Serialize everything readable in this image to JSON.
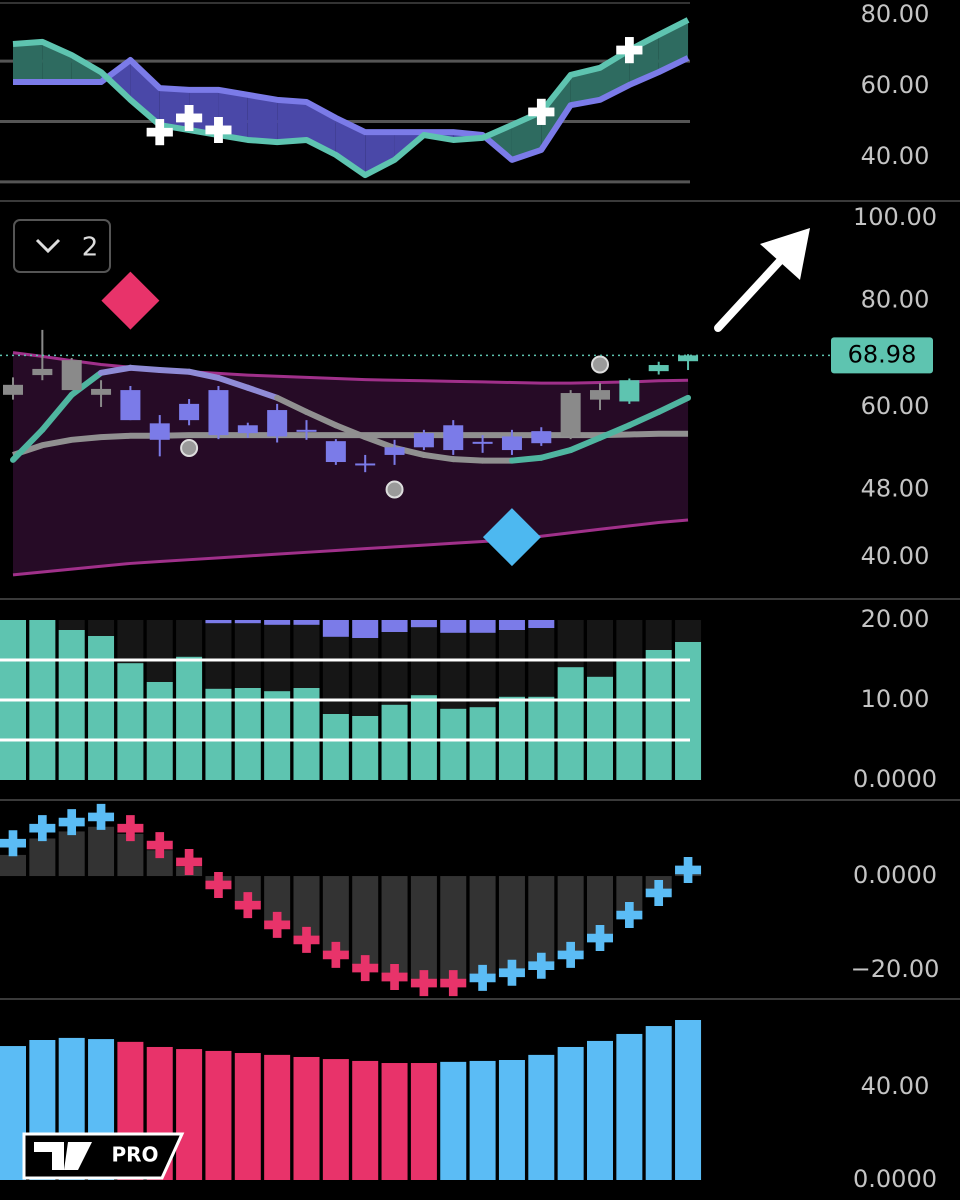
{
  "pane_toggle": "2",
  "logo_text": "PRO",
  "chart_data": [
    {
      "type": "line",
      "ylim": [
        27.9,
        84.2
      ],
      "yticks": [
        {
          "value": 80,
          "label": "80.00"
        },
        {
          "value": 60,
          "label": "60.00"
        },
        {
          "value": 40,
          "label": "40.00"
        }
      ],
      "hlines": [
        67,
        50,
        33
      ],
      "hline_color": "#555555",
      "fill_between": true,
      "fill_colors": [
        "#2e6b60",
        "#4a48a8"
      ],
      "series": [
        {
          "color": "#5ec4b0",
          "values": [
            71.8,
            72.4,
            68.7,
            63.9,
            56.1,
            49.0,
            47.6,
            46.2,
            44.8,
            44.2,
            44.8,
            40.6,
            34.9,
            39.2,
            46.2,
            44.8,
            45.4,
            49.0,
            52.7,
            63.1,
            65.1,
            70.1,
            74.4,
            78.6
          ]
        },
        {
          "color": "#7b7be8",
          "values": [
            61.1,
            61.1,
            61.1,
            61.1,
            67.3,
            59.4,
            58.9,
            58.9,
            57.5,
            56.1,
            55.5,
            51.0,
            47.0,
            47.0,
            47.0,
            47.0,
            46.2,
            39.2,
            42.0,
            54.6,
            56.1,
            60.3,
            63.9,
            67.9
          ]
        },
        {
          "color": "#ffffff",
          "marker": "cross",
          "values": [
            null,
            null,
            null,
            null,
            null,
            47.0,
            51.0,
            47.6,
            null,
            null,
            null,
            null,
            null,
            null,
            null,
            null,
            null,
            null,
            52.7,
            null,
            null,
            70.1,
            null,
            null
          ]
        }
      ]
    },
    {
      "type": "candlestick",
      "log_scale": true,
      "ylim": [
        35.6,
        105
      ],
      "yticks": [
        {
          "value": 100,
          "label": "100.00"
        },
        {
          "value": 80,
          "label": "80.00"
        },
        {
          "value": 60,
          "label": "60.00"
        },
        {
          "value": 48,
          "label": "48.00"
        },
        {
          "value": 40,
          "label": "40.00"
        }
      ],
      "open": [
        62.0,
        65.4,
        62.8,
        63.0,
        62.8,
        57.4,
        60.5,
        62.8,
        57.1,
        59.5,
        56.4,
        54.7,
        51.5,
        53.8,
        55.9,
        57.1,
        54.6,
        55.4,
        56.2,
        55.4,
        61.2,
        60.9,
        66.1,
        67.9
      ],
      "high": [
        65.0,
        73.9,
        68.5,
        64.5,
        63.5,
        58.7,
        61.3,
        63.5,
        57.5,
        60.5,
        57.9,
        55.0,
        52.7,
        54.9,
        56.4,
        57.9,
        55.6,
        56.4,
        56.8,
        62.8,
        64.0,
        64.8,
        67.8,
        69.2
      ],
      "low": [
        61.2,
        64.5,
        62.8,
        60.0,
        57.9,
        52.5,
        57.1,
        55.0,
        55.2,
        54.5,
        54.9,
        51.3,
        50.3,
        51.3,
        53.4,
        52.7,
        53.0,
        52.7,
        54.0,
        55.0,
        59.5,
        60.5,
        65.5,
        66.3
      ],
      "close": [
        63.7,
        66.5,
        68.1,
        62.0,
        57.9,
        54.9,
        57.9,
        55.6,
        55.9,
        55.4,
        56.2,
        51.7,
        51.3,
        52.7,
        53.8,
        53.4,
        54.4,
        53.4,
        54.4,
        62.3,
        62.8,
        64.5,
        67.2,
        68.98
      ],
      "colors": [
        "#8a8a8a",
        "#8a8a8a",
        "#8a8a8a",
        "#8a8a8a",
        "#7b7be8",
        "#7b7be8",
        "#7b7be8",
        "#7b7be8",
        "#7b7be8",
        "#7b7be8",
        "#7b7be8",
        "#7b7be8",
        "#7b7be8",
        "#7b7be8",
        "#7b7be8",
        "#7b7be8",
        "#7b7be8",
        "#7b7be8",
        "#7b7be8",
        "#8a8a8a",
        "#8a8a8a",
        "#5ec4b0",
        "#5ec4b0",
        "#5ec4b0"
      ],
      "band": {
        "fill": "#2a0c2a",
        "upper": [
          69.5,
          68.8,
          68.0,
          67.3,
          66.8,
          66.3,
          66.0,
          65.7,
          65.4,
          65.2,
          65.0,
          64.8,
          64.6,
          64.5,
          64.4,
          64.3,
          64.2,
          64.1,
          64.0,
          64.0,
          64.1,
          64.2,
          64.4,
          64.5
        ],
        "lower": [
          38.1,
          38.4,
          38.7,
          39.0,
          39.3,
          39.5,
          39.7,
          39.9,
          40.1,
          40.3,
          40.5,
          40.7,
          40.9,
          41.1,
          41.3,
          41.5,
          41.7,
          41.9,
          42.3,
          42.7,
          43.1,
          43.5,
          43.9,
          44.2
        ],
        "color": "#a0308a"
      },
      "series": [
        {
          "color": "#909090",
          "values": [
            52.7,
            54.1,
            54.9,
            55.3,
            55.5,
            55.5,
            55.6,
            55.6,
            55.6,
            55.6,
            55.6,
            55.6,
            55.6,
            55.6,
            55.6,
            55.6,
            55.6,
            55.6,
            55.6,
            55.6,
            55.6,
            55.7,
            55.8,
            55.8
          ]
        },
        {
          "colors": [
            "#4fb5a0",
            "#4fb5a0",
            "#4fb5a0",
            "#8f8bd6",
            "#8f8bd6",
            "#8f8bd6",
            "#8f8bd6",
            "#8f8bd6",
            "#8f8bd6",
            "#909090",
            "#909090",
            "#909090",
            "#909090",
            "#909090",
            "#909090",
            "#909090",
            "#909090",
            "#4fb5a0",
            "#4fb5a0",
            "#4fb5a0",
            "#4fb5a0",
            "#4fb5a0",
            "#4fb5a0",
            "#4fb5a0"
          ],
          "values": [
            52.0,
            56.4,
            62.0,
            65.8,
            66.7,
            66.3,
            66.0,
            64.9,
            63.2,
            61.5,
            59.2,
            57.1,
            55.3,
            53.7,
            52.7,
            52.1,
            51.9,
            51.9,
            52.3,
            53.4,
            55.2,
            57.1,
            59.2,
            61.5
          ]
        },
        {
          "color": "#9a9a9a",
          "marker": "circle",
          "values": [
            null,
            null,
            null,
            null,
            null,
            null,
            53.7,
            null,
            null,
            null,
            null,
            null,
            null,
            48.0,
            null,
            null,
            null,
            null,
            null,
            null,
            67.3,
            null,
            null,
            null
          ]
        },
        {
          "color": "#e8336a",
          "marker": "diamond",
          "values": [
            null,
            null,
            null,
            null,
            80.0,
            null,
            null,
            null,
            null,
            null,
            null,
            null,
            null,
            null,
            null,
            null,
            null,
            null,
            null,
            null,
            null,
            null,
            null,
            null
          ]
        },
        {
          "color": "#4db8f0",
          "marker": "diamond",
          "values": [
            null,
            null,
            null,
            null,
            null,
            null,
            null,
            null,
            null,
            null,
            null,
            null,
            null,
            null,
            null,
            null,
            null,
            42.2,
            null,
            null,
            null,
            null,
            null,
            null
          ]
        }
      ],
      "last_price": {
        "value": 68.98,
        "color": "#5ec4b0"
      }
    },
    {
      "type": "bar",
      "ylim": [
        -2.5,
        22.5
      ],
      "yticks": [
        {
          "value": 20,
          "label": "20.00"
        },
        {
          "value": 10,
          "label": "10.00"
        },
        {
          "value": 0,
          "label": "0.0000"
        }
      ],
      "hlines": [
        15,
        10,
        5
      ],
      "hline_color": "#ffffff",
      "series": [
        {
          "color": "#5ec4b0",
          "base": 0,
          "values": [
            20,
            20,
            18.75,
            18,
            14.6,
            12.25,
            15.4,
            11.4,
            11.5,
            11.1,
            11.5,
            8.25,
            8,
            9.4,
            10.6,
            8.9,
            9.1,
            10.4,
            10.4,
            14.1,
            12.9,
            15,
            16.25,
            17.25
          ]
        },
        {
          "color": "#7b7be8",
          "base": 20,
          "direction": "down",
          "values": [
            null,
            null,
            null,
            null,
            null,
            null,
            null,
            0.4,
            0.4,
            0.6,
            0.6,
            2.1,
            2.25,
            1.5,
            0.9,
            1.6,
            1.6,
            1.25,
            1.0,
            null,
            null,
            null,
            null,
            null
          ]
        }
      ]
    },
    {
      "type": "bar",
      "ylim": [
        -26.4,
        16.2
      ],
      "yticks": [
        {
          "value": 0,
          "label": "0.0000"
        },
        {
          "value": -20,
          "label": "−20.00"
        }
      ],
      "series": [
        {
          "color": "#333333",
          "base": 0,
          "values": [
            4.5,
            8.0,
            9.5,
            10.5,
            9.0,
            5.5,
            2.0,
            -1.0,
            -5.5,
            -9.5,
            -13.0,
            -16.0,
            -19.0,
            -21.0,
            -22.0,
            -22.0,
            -21.0,
            -20.0,
            -18.5,
            -16.0,
            -12.5,
            -7.5,
            -3.0,
            0.5
          ]
        },
        {
          "marker": "cross",
          "colors": [
            "#5bbcf5",
            "#5bbcf5",
            "#5bbcf5",
            "#5bbcf5",
            "#e8336a",
            "#e8336a",
            "#e8336a",
            "#e8336a",
            "#e8336a",
            "#e8336a",
            "#e8336a",
            "#e8336a",
            "#e8336a",
            "#e8336a",
            "#e8336a",
            "#e8336a",
            "#5bbcf5",
            "#5bbcf5",
            "#5bbcf5",
            "#5bbcf5",
            "#5bbcf5",
            "#5bbcf5",
            "#5bbcf5",
            "#5bbcf5"
          ],
          "values": [
            7.0,
            10.2,
            11.5,
            12.6,
            10.2,
            6.6,
            3.0,
            -1.9,
            -6.2,
            -10.4,
            -13.6,
            -16.8,
            -19.6,
            -21.5,
            -22.8,
            -22.8,
            -21.7,
            -20.6,
            -19.1,
            -16.8,
            -13.2,
            -8.3,
            -3.6,
            1.3
          ]
        }
      ]
    },
    {
      "type": "bar",
      "ylim": [
        -8.6,
        77.4
      ],
      "yticks": [
        {
          "value": 40,
          "label": "40.00"
        },
        {
          "value": 0,
          "label": "0.0000"
        }
      ],
      "series": [
        {
          "base": 0,
          "colors": [
            "#5bbcf5",
            "#5bbcf5",
            "#5bbcf5",
            "#5bbcf5",
            "#e8336a",
            "#e8336a",
            "#e8336a",
            "#e8336a",
            "#e8336a",
            "#e8336a",
            "#e8336a",
            "#e8336a",
            "#e8336a",
            "#e8336a",
            "#e8336a",
            "#5bbcf5",
            "#5bbcf5",
            "#5bbcf5",
            "#5bbcf5",
            "#5bbcf5",
            "#5bbcf5",
            "#5bbcf5",
            "#5bbcf5",
            "#5bbcf5"
          ],
          "values": [
            57.6,
            60.2,
            61.1,
            60.6,
            59.4,
            57.2,
            56.3,
            55.5,
            54.6,
            53.8,
            52.9,
            52.0,
            51.2,
            50.3,
            50.3,
            50.8,
            51.2,
            51.6,
            53.8,
            57.2,
            59.8,
            62.8,
            66.2,
            68.8
          ]
        }
      ]
    }
  ]
}
